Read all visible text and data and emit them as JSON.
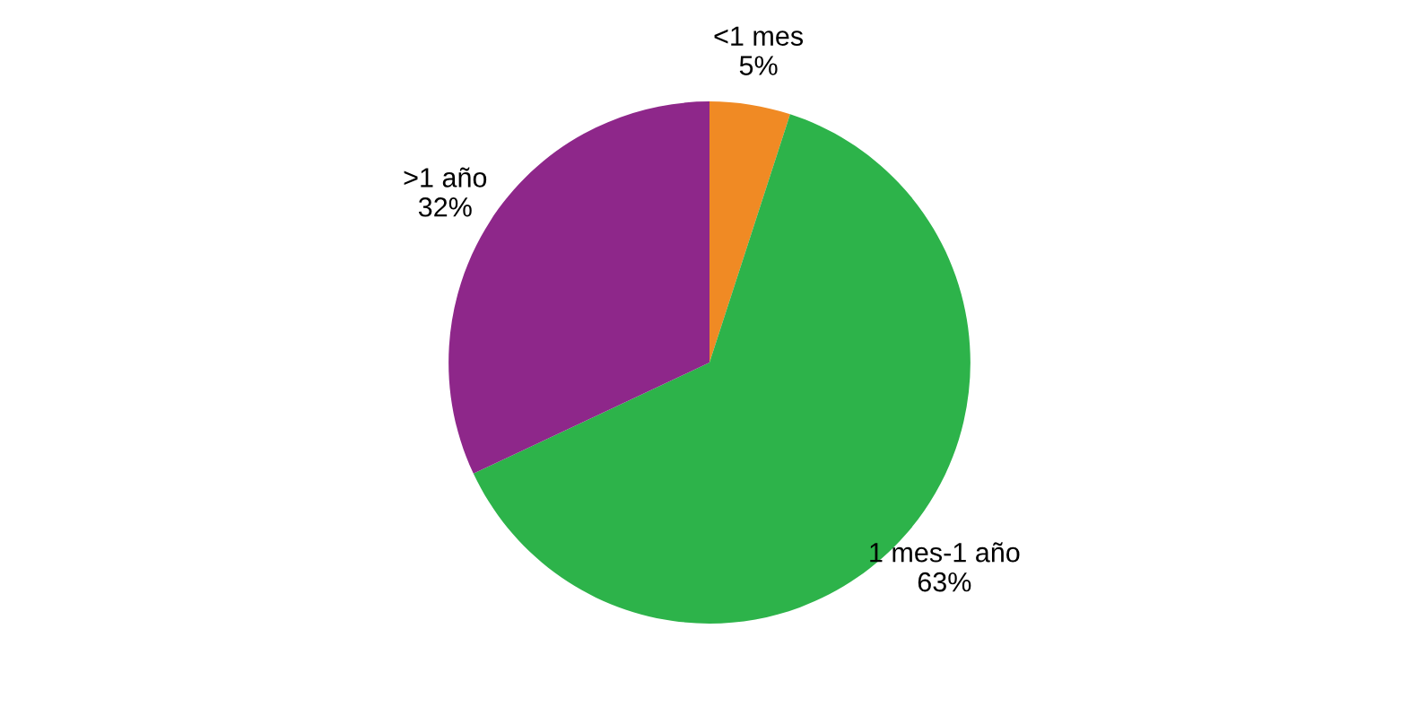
{
  "chart_data": {
    "type": "pie",
    "categories": [
      "<1 mes",
      "1 mes-1 año",
      ">1 año"
    ],
    "values": [
      5,
      63,
      32
    ],
    "value_labels": [
      "5%",
      "63%",
      "32%"
    ],
    "colors": [
      "#f08a24",
      "#2db34a",
      "#8e278a"
    ],
    "legend": false
  }
}
